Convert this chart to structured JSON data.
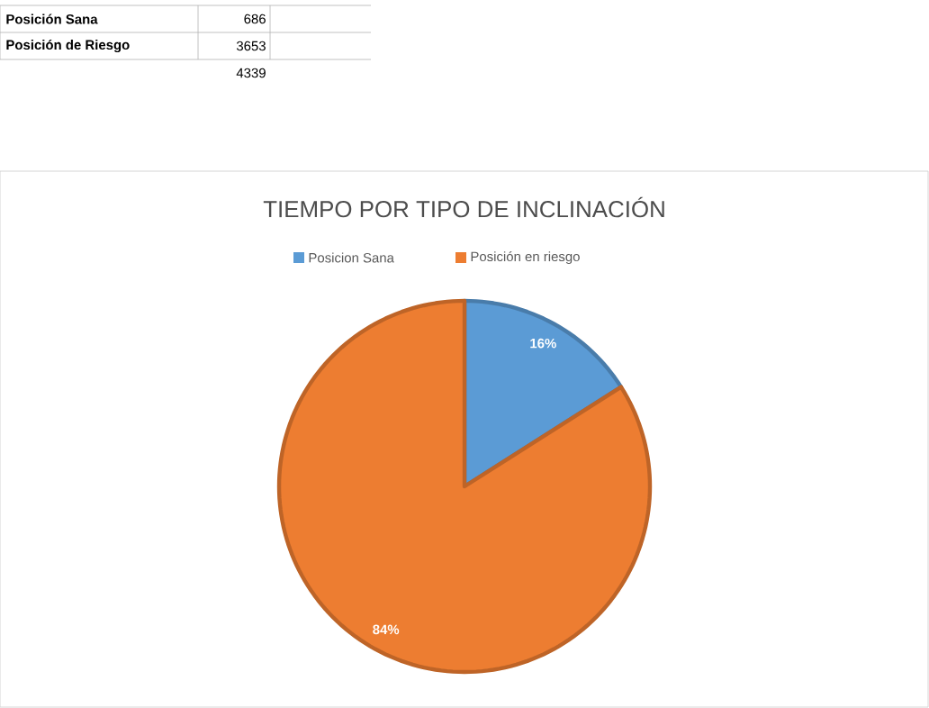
{
  "chart_data": {
    "type": "pie",
    "title": "TIEMPO POR TIPO DE INCLINACIÓN",
    "categories": [
      "Posicion Sana",
      "Posición en riesgo"
    ],
    "values": [
      16,
      84
    ],
    "colors": [
      "#5b9bd5",
      "#ed7d31"
    ],
    "value_labels": [
      "16%",
      "84%"
    ],
    "legend": "top",
    "annotations": [
      "Posición Sana",
      "686",
      "Posición de Riesgo",
      "3653",
      "4339"
    ]
  }
}
